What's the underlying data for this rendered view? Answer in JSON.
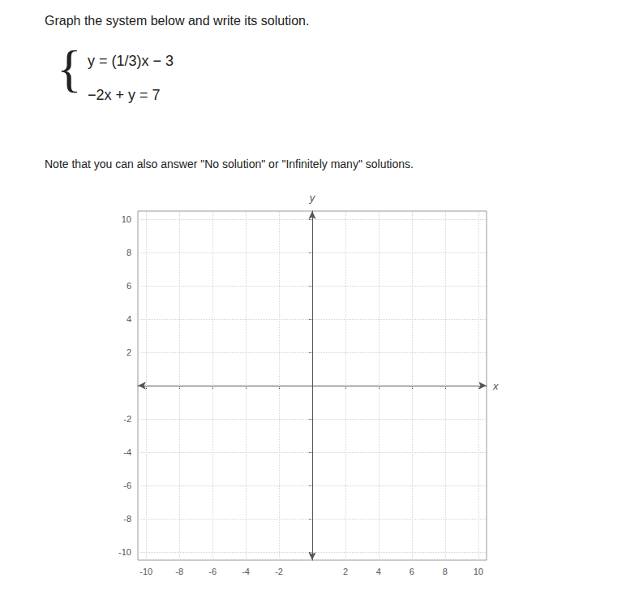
{
  "chart_data": {
    "type": "line",
    "title": "Graph the system below and write its solution.",
    "subtitle": "Note that you can also answer \"No solution\" or \"Infinitely many\" solutions.",
    "annotations": [
      "{",
      "y = (1/3)x − 3",
      "−2x + y = 7"
    ],
    "xlabel": "x",
    "ylabel": "y",
    "xlim": [
      -10.5,
      10.5
    ],
    "ylim": [
      -10.5,
      10.5
    ],
    "xticks": [
      -10,
      -8,
      -6,
      -4,
      -2,
      2,
      4,
      6,
      8,
      10
    ],
    "yticks": [
      -10,
      -8,
      -6,
      -4,
      -2,
      2,
      4,
      6,
      8,
      10
    ],
    "grid": true
  }
}
